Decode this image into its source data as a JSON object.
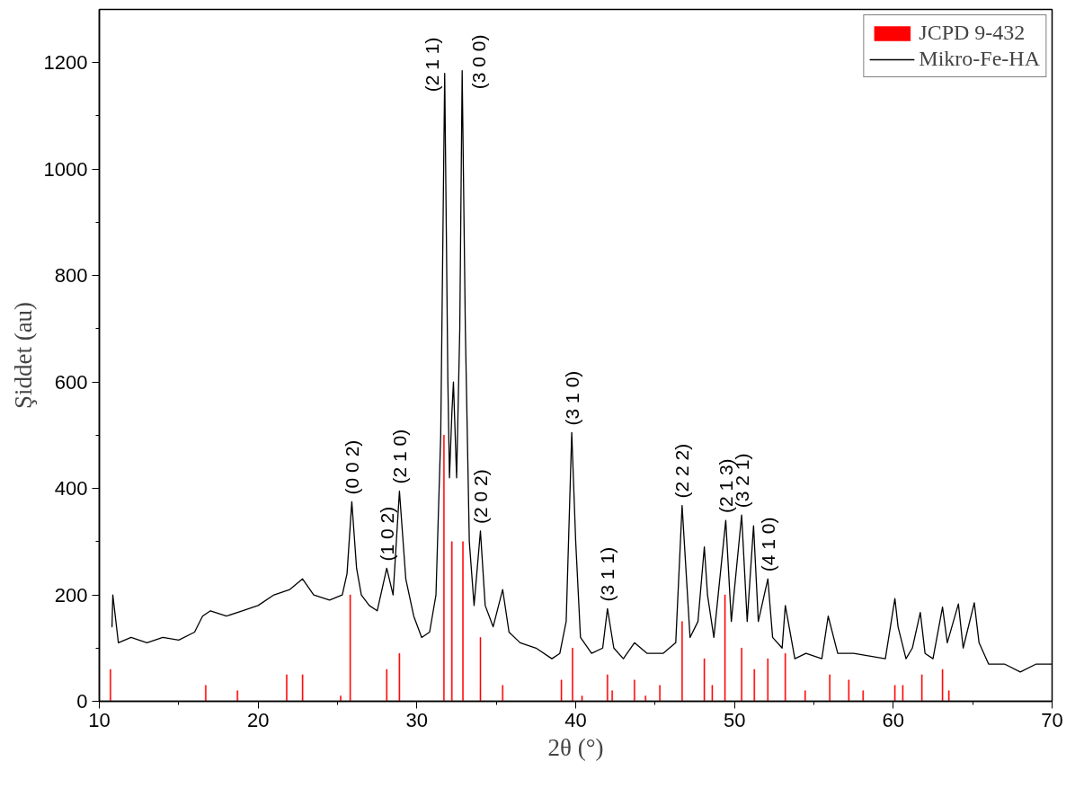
{
  "chart_data": {
    "type": "line",
    "xlabel": "2θ (°)",
    "ylabel": "Şiddet (au)",
    "xlim": [
      10,
      70
    ],
    "xticks": [
      10,
      20,
      30,
      40,
      50,
      60,
      70
    ],
    "ylim": [
      0,
      1300
    ],
    "yticks": [
      0,
      200,
      400,
      600,
      800,
      1000,
      1200
    ],
    "grid": false,
    "legend": "top right",
    "series": [
      {
        "name": "JCPD 9-432",
        "type": "bar",
        "color": "#ff0000",
        "x": [
          10.7,
          16.7,
          18.7,
          21.8,
          22.8,
          25.2,
          25.8,
          28.1,
          28.9,
          31.7,
          32.2,
          32.9,
          34.0,
          35.4,
          39.1,
          39.8,
          40.4,
          42.0,
          42.3,
          43.7,
          44.4,
          45.3,
          46.7,
          48.1,
          48.6,
          49.4,
          50.45,
          51.25,
          52.1,
          53.2,
          54.45,
          56.0,
          57.2,
          58.1,
          60.1,
          60.6,
          61.8,
          63.1,
          63.5
        ],
        "values": [
          60,
          30,
          20,
          50,
          50,
          10,
          200,
          60,
          90,
          500,
          300,
          300,
          120,
          30,
          40,
          100,
          10,
          50,
          20,
          40,
          10,
          30,
          150,
          80,
          30,
          200,
          100,
          60,
          80,
          90,
          20,
          50,
          40,
          20,
          30,
          30,
          50,
          60,
          20
        ]
      },
      {
        "name": "Mikro-Fe-HA",
        "color": "#000000",
        "x": [
          10.8,
          10.85,
          11.2,
          12,
          13,
          14,
          15,
          16,
          16.5,
          17,
          18,
          19,
          20,
          21,
          22,
          22.8,
          23.5,
          24.5,
          25.3,
          25.6,
          25.9,
          26.2,
          26.5,
          27,
          27.5,
          28.1,
          28.5,
          28.9,
          29.3,
          29.8,
          30.3,
          30.8,
          31.2,
          31.5,
          31.75,
          31.95,
          32.05,
          32.2,
          32.3,
          32.5,
          32.7,
          32.85,
          33.05,
          33.3,
          33.6,
          34.0,
          34.3,
          34.8,
          35.4,
          35.8,
          36.5,
          37.5,
          38.5,
          39.0,
          39.4,
          39.75,
          40.0,
          40.3,
          41,
          41.7,
          42.0,
          42.4,
          43,
          43.7,
          44.5,
          45.5,
          46.3,
          46.7,
          47.2,
          47.7,
          48.1,
          48.3,
          48.7,
          49.45,
          49.8,
          50.45,
          50.8,
          51.2,
          51.5,
          52.1,
          52.4,
          53.0,
          53.2,
          53.8,
          54.5,
          55.5,
          55.9,
          56.5,
          57.5,
          58.5,
          59.5,
          60.1,
          60.3,
          60.8,
          61.2,
          61.7,
          62,
          62.5,
          63.1,
          63.4,
          64.1,
          64.4,
          65.1,
          65.4,
          66,
          67,
          68,
          69,
          70
        ],
        "values": [
          140,
          200,
          110,
          120,
          110,
          120,
          115,
          130,
          160,
          170,
          160,
          170,
          180,
          200,
          210,
          230,
          200,
          190,
          200,
          240,
          375,
          250,
          200,
          180,
          170,
          250,
          200,
          395,
          230,
          160,
          120,
          130,
          200,
          500,
          1180,
          600,
          420,
          540,
          600,
          420,
          700,
          1185,
          700,
          300,
          180,
          320,
          180,
          140,
          210,
          130,
          110,
          100,
          80,
          90,
          150,
          505,
          300,
          120,
          90,
          100,
          174,
          100,
          80,
          110,
          90,
          90,
          110,
          368,
          120,
          150,
          290,
          200,
          120,
          340,
          150,
          350,
          150,
          330,
          150,
          230,
          120,
          100,
          180,
          80,
          90,
          80,
          160,
          90,
          90,
          85,
          80,
          193,
          140,
          80,
          100,
          167,
          90,
          80,
          177,
          110,
          183,
          100,
          185,
          110,
          70,
          70,
          55,
          70,
          70
        ]
      }
    ],
    "annotations": [
      {
        "text": "(0 0 2)",
        "x": 25.9,
        "y": 375
      },
      {
        "text": "(1 0 2)",
        "x": 28.1,
        "y": 250
      },
      {
        "text": "(2 1 0)",
        "x": 28.9,
        "y": 395
      },
      {
        "text": "(2 1 1)",
        "x": 31.75,
        "y": 1180
      },
      {
        "text": "(3 0 0)",
        "x": 32.85,
        "y": 1185
      },
      {
        "text": "(2 0 2)",
        "x": 34.0,
        "y": 320
      },
      {
        "text": "(3 1 0)",
        "x": 39.75,
        "y": 505
      },
      {
        "text": "(3 1 1)",
        "x": 42.0,
        "y": 174
      },
      {
        "text": "(2 2 2)",
        "x": 46.7,
        "y": 368
      },
      {
        "text": "(2 1 3)",
        "x": 49.45,
        "y": 340
      },
      {
        "text": "(3 2 1)",
        "x": 50.45,
        "y": 350
      },
      {
        "text": "(4 1 0)",
        "x": 52.1,
        "y": 230
      }
    ]
  }
}
